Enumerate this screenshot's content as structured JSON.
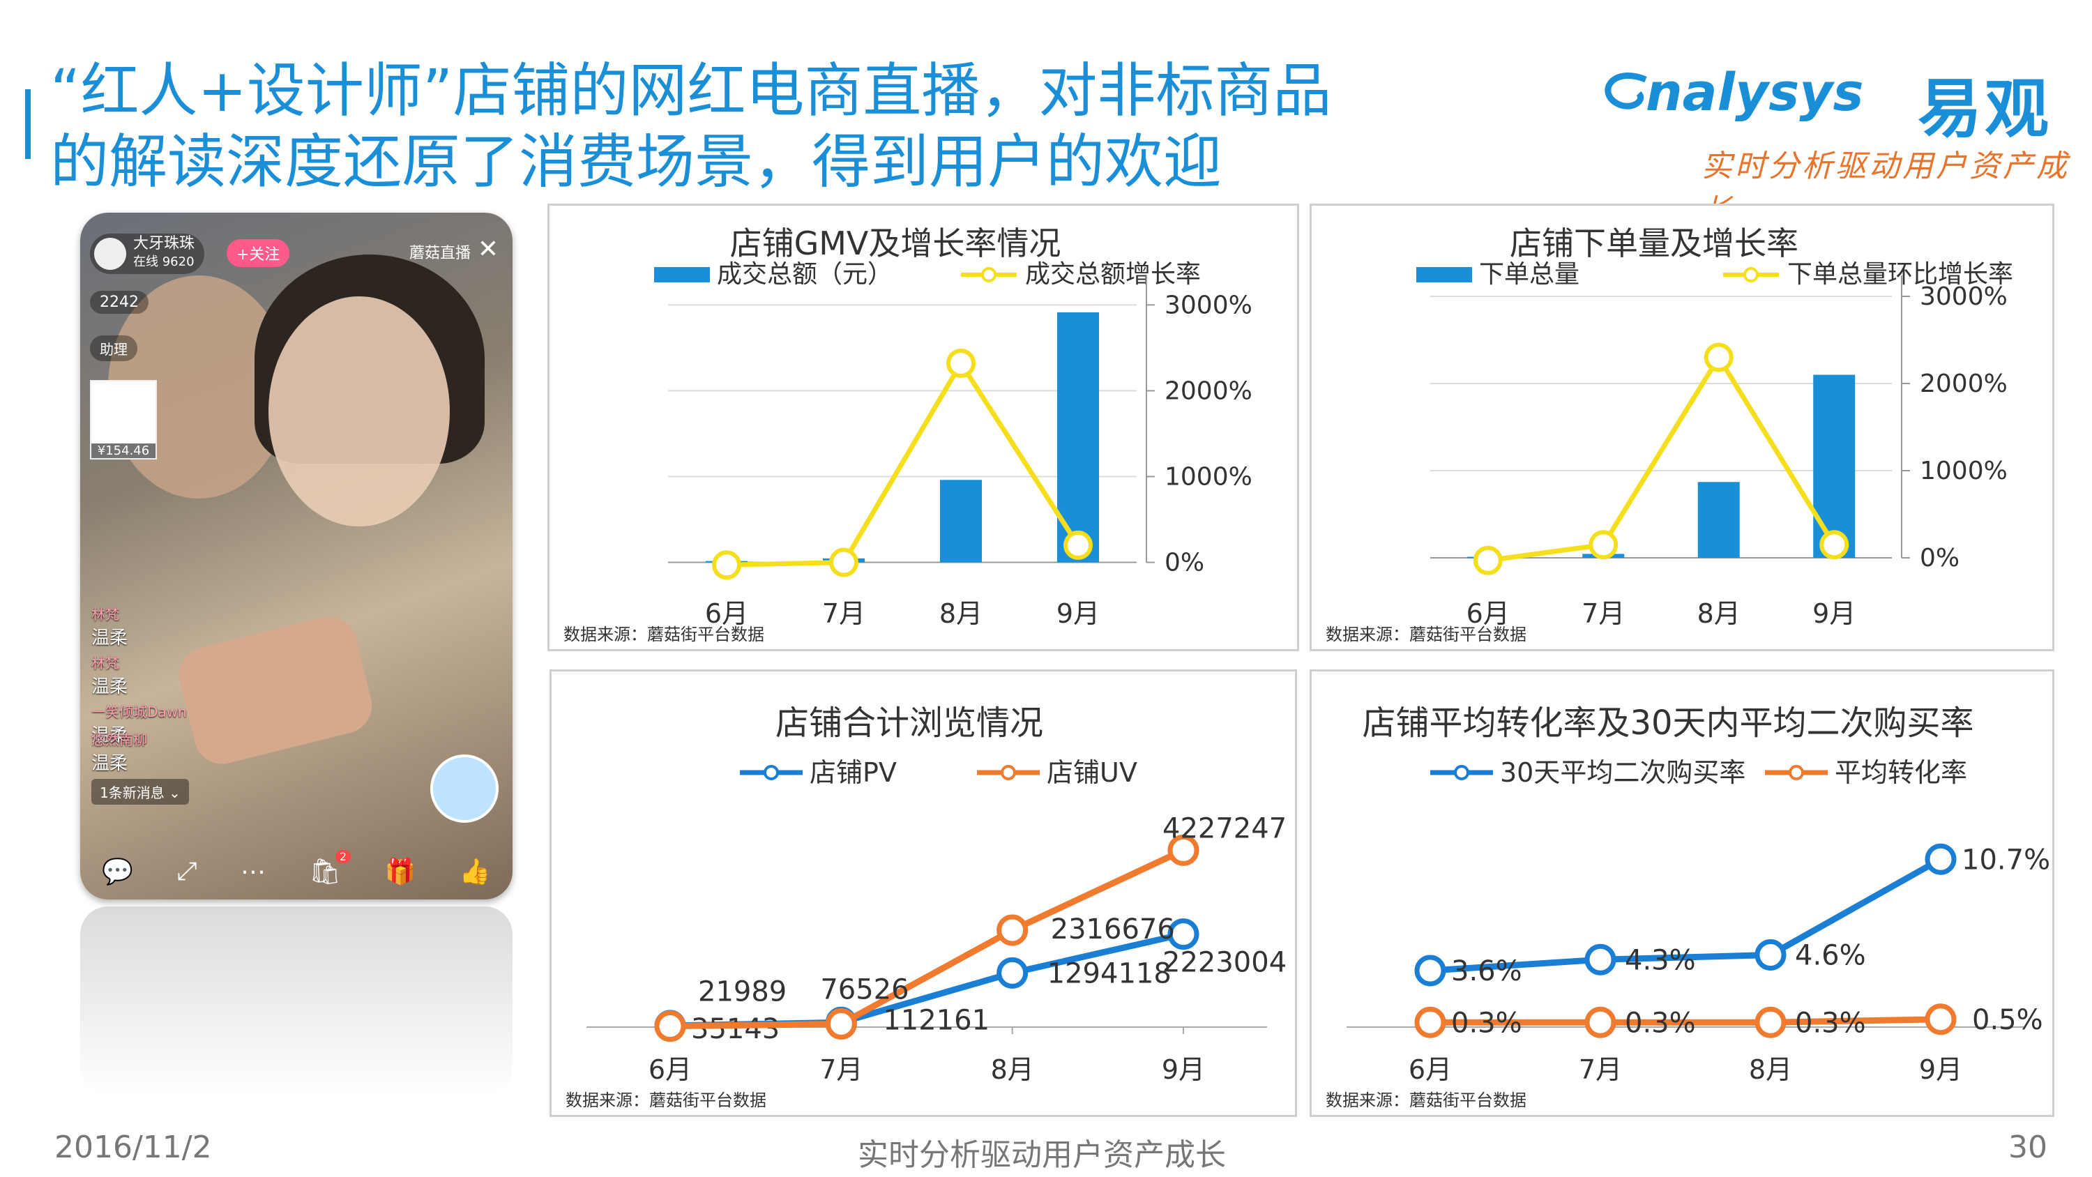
{
  "title": {
    "line1": "“红人+设计师”店铺的网红电商直播，对非标商品",
    "line2": "的解读深度还原了消费场景，得到用户的欢迎"
  },
  "logo": {
    "en": "nalysys",
    "cn": "易观",
    "slogan": "实时分析驱动用户资产成长"
  },
  "phone": {
    "host_name": "大牙珠珠",
    "online": "在线 9620",
    "follow": "+关注",
    "brand": "蘑菇直播",
    "count": "2242",
    "assistant": "助理",
    "price": "¥154.46",
    "messages": [
      {
        "user": "林梵",
        "text": "温柔"
      },
      {
        "user": "林梵",
        "text": "温柔"
      },
      {
        "user": "一笑倾城Dawn",
        "text": "温柔"
      },
      {
        "user": "悠然南柳",
        "text": "温柔"
      }
    ],
    "new_msg": "1条新消息 ⌄",
    "badge": "2"
  },
  "colors": {
    "blue": "#1a8fd8",
    "yellow": "#f5de1b",
    "orange": "#f07a2e",
    "line_blue": "#1a7fd4"
  },
  "source": "数据来源：蘑菇街平台数据",
  "footer": {
    "date": "2016/11/2",
    "slogan": "实时分析驱动用户资产成长",
    "page": "30"
  },
  "chart_data": [
    {
      "type": "bar+line",
      "title": "店铺GMV及增长率情况",
      "categories": [
        "6月",
        "7月",
        "8月",
        "9月"
      ],
      "legend": [
        "成交总额（元）",
        "成交总额增长率"
      ],
      "y_ticks": [
        "3000%",
        "2000%",
        "1000%",
        "0%"
      ],
      "bar_values": [
        0.5,
        1.5,
        31,
        94
      ],
      "line_values": [
        -30,
        0,
        2320,
        200
      ],
      "ylim": [
        -150,
        3100
      ]
    },
    {
      "type": "bar+line",
      "title": "店铺下单量及增长率",
      "categories": [
        "6月",
        "7月",
        "8月",
        "9月"
      ],
      "legend": [
        "下单总量",
        "下单总量环比增长率"
      ],
      "y_ticks": [
        "3000%",
        "2000%",
        "1000%",
        "0%"
      ],
      "bar_values": [
        0.4,
        1.5,
        29,
        70
      ],
      "line_values": [
        -30,
        150,
        2300,
        150
      ],
      "ylim": [
        -200,
        3000
      ]
    },
    {
      "type": "line",
      "title": "店铺合计浏览情况",
      "categories": [
        "6月",
        "7月",
        "8月",
        "9月"
      ],
      "series": [
        {
          "name": "店铺PV",
          "values": [
            35143,
            112161,
            1294118,
            2223004
          ],
          "labels": [
            "35143",
            "112161",
            "1294118",
            "2223004"
          ]
        },
        {
          "name": "店铺UV",
          "values": [
            21989,
            76526,
            2316676,
            4227247
          ],
          "labels": [
            "21989",
            "76526",
            "2316676",
            "4227247"
          ]
        }
      ],
      "ylim": [
        0,
        4500000
      ]
    },
    {
      "type": "line",
      "title": "店铺平均转化率及30天内平均二次购买率",
      "categories": [
        "6月",
        "7月",
        "8月",
        "9月"
      ],
      "series": [
        {
          "name": "30天平均二次购买率",
          "values": [
            3.6,
            4.3,
            4.6,
            10.7
          ],
          "labels": [
            "3.6%",
            "4.3%",
            "4.6%",
            "10.7%"
          ]
        },
        {
          "name": "平均转化率",
          "values": [
            0.3,
            0.3,
            0.3,
            0.5
          ],
          "labels": [
            "0.3%",
            "0.3%",
            "0.3%",
            "0.5%"
          ]
        }
      ],
      "ylim": [
        0,
        12
      ]
    }
  ]
}
